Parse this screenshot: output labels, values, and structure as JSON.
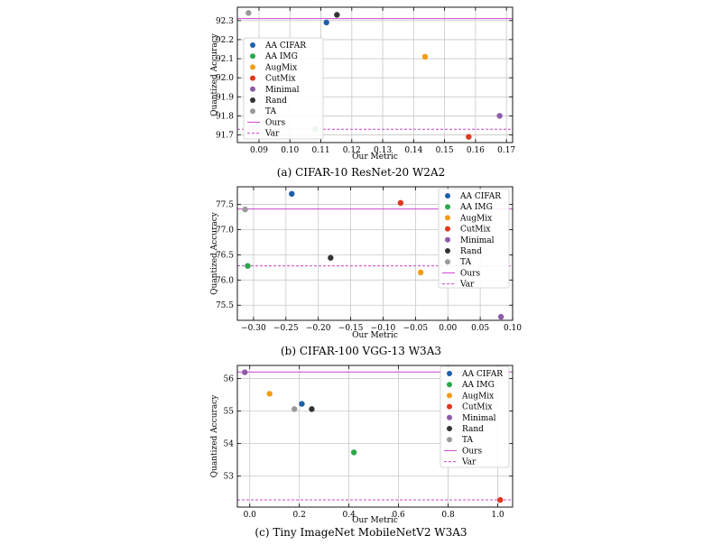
{
  "figure": {
    "colors": {
      "grid": "#c8c8c8",
      "ours": "#cc44cc",
      "var": "#cc44cc",
      "frame": "#000000"
    }
  },
  "chart_data": [
    {
      "type": "scatter",
      "caption": "(a) CIFAR-10 ResNet-20 W2A2",
      "xlabel": "Our Metric",
      "ylabel": "Quantized Accuracy",
      "xlim": [
        0.083,
        0.172
      ],
      "ylim": [
        91.66,
        92.37
      ],
      "xticks": [
        0.09,
        0.1,
        0.11,
        0.12,
        0.13,
        0.14,
        0.15,
        0.16,
        0.17
      ],
      "xtick_labels": [
        "0.09",
        "0.10",
        "0.11",
        "0.12",
        "0.13",
        "0.14",
        "0.15",
        "0.16",
        "0.17"
      ],
      "yticks": [
        91.7,
        91.8,
        91.9,
        92.0,
        92.1,
        92.2,
        92.3
      ],
      "ytick_labels": [
        "91.7",
        "91.8",
        "91.9",
        "92.0",
        "92.1",
        "92.2",
        "92.3"
      ],
      "grid": true,
      "legend_position": "left",
      "series": [
        {
          "name": "AA CIFAR",
          "color": "#1f5fa8",
          "x": 0.1118,
          "y": 92.29
        },
        {
          "name": "AA IMG",
          "color": "#2ca84a",
          "x": 0.1082,
          "y": 91.73
        },
        {
          "name": "AugMix",
          "color": "#f39c12",
          "x": 0.1437,
          "y": 92.11
        },
        {
          "name": "CutMix",
          "color": "#e0381f",
          "x": 0.1578,
          "y": 91.69
        },
        {
          "name": "Minimal",
          "color": "#8e5ba8",
          "x": 0.1678,
          "y": 91.8
        },
        {
          "name": "Rand",
          "color": "#333333",
          "x": 0.1152,
          "y": 92.33
        },
        {
          "name": "TA",
          "color": "#999999",
          "x": 0.0866,
          "y": 92.34
        }
      ],
      "lines": [
        {
          "name": "Ours",
          "style": "solid",
          "y": 92.31
        },
        {
          "name": "Var",
          "style": "dashed",
          "y": 91.73
        }
      ]
    },
    {
      "type": "scatter",
      "caption": "(b) CIFAR-100 VGG-13 W3A3",
      "xlabel": "Our Metric",
      "ylabel": "Quantized Accuracy",
      "xlim": [
        -0.325,
        0.1
      ],
      "ylim": [
        75.2,
        77.85
      ],
      "xticks": [
        -0.3,
        -0.25,
        -0.2,
        -0.15,
        -0.1,
        -0.05,
        0.0,
        0.05,
        0.1
      ],
      "xtick_labels": [
        "−0.30",
        "−0.25",
        "−0.20",
        "−0.15",
        "−0.10",
        "−0.05",
        "0.00",
        "0.05",
        "0.10"
      ],
      "yticks": [
        75.5,
        76.0,
        76.5,
        77.0,
        77.5
      ],
      "ytick_labels": [
        "75.5",
        "76.0",
        "76.5",
        "77.0",
        "77.5"
      ],
      "grid": true,
      "legend_position": "top-right",
      "series": [
        {
          "name": "AA CIFAR",
          "color": "#1f5fa8",
          "x": -0.241,
          "y": 77.71
        },
        {
          "name": "AA IMG",
          "color": "#2ca84a",
          "x": -0.309,
          "y": 76.28
        },
        {
          "name": "AugMix",
          "color": "#f39c12",
          "x": -0.042,
          "y": 76.15
        },
        {
          "name": "CutMix",
          "color": "#e0381f",
          "x": -0.073,
          "y": 77.53
        },
        {
          "name": "Minimal",
          "color": "#8e5ba8",
          "x": 0.082,
          "y": 75.27
        },
        {
          "name": "Rand",
          "color": "#333333",
          "x": -0.181,
          "y": 76.44
        },
        {
          "name": "TA",
          "color": "#999999",
          "x": -0.313,
          "y": 77.4
        }
      ],
      "lines": [
        {
          "name": "Ours",
          "style": "solid",
          "y": 77.41
        },
        {
          "name": "Var",
          "style": "dashed",
          "y": 76.28
        }
      ]
    },
    {
      "type": "scatter",
      "caption": "(c) Tiny ImageNet MobileNetV2 W3A3",
      "xlabel": "Our Metric",
      "ylabel": "Quantized Accuracy",
      "xlim": [
        -0.05,
        1.06
      ],
      "ylim": [
        52.05,
        56.4
      ],
      "xticks": [
        0.0,
        0.2,
        0.4,
        0.6,
        0.8,
        1.0
      ],
      "xtick_labels": [
        "0.0",
        "0.2",
        "0.4",
        "0.6",
        "0.8",
        "1.0"
      ],
      "yticks": [
        53,
        54,
        55,
        56
      ],
      "ytick_labels": [
        "53",
        "54",
        "55",
        "56"
      ],
      "grid": true,
      "legend_position": "top-right",
      "series": [
        {
          "name": "AA CIFAR",
          "color": "#1f5fa8",
          "x": 0.21,
          "y": 55.22
        },
        {
          "name": "AA IMG",
          "color": "#2ca84a",
          "x": 0.42,
          "y": 53.73
        },
        {
          "name": "AugMix",
          "color": "#f39c12",
          "x": 0.08,
          "y": 55.53
        },
        {
          "name": "CutMix",
          "color": "#e0381f",
          "x": 1.01,
          "y": 52.27
        },
        {
          "name": "Minimal",
          "color": "#8e5ba8",
          "x": -0.02,
          "y": 56.19
        },
        {
          "name": "Rand",
          "color": "#333333",
          "x": 0.25,
          "y": 55.06
        },
        {
          "name": "TA",
          "color": "#999999",
          "x": 0.18,
          "y": 55.06
        }
      ],
      "lines": [
        {
          "name": "Ours",
          "style": "solid",
          "y": 56.2
        },
        {
          "name": "Var",
          "style": "dashed",
          "y": 52.27
        }
      ]
    }
  ]
}
